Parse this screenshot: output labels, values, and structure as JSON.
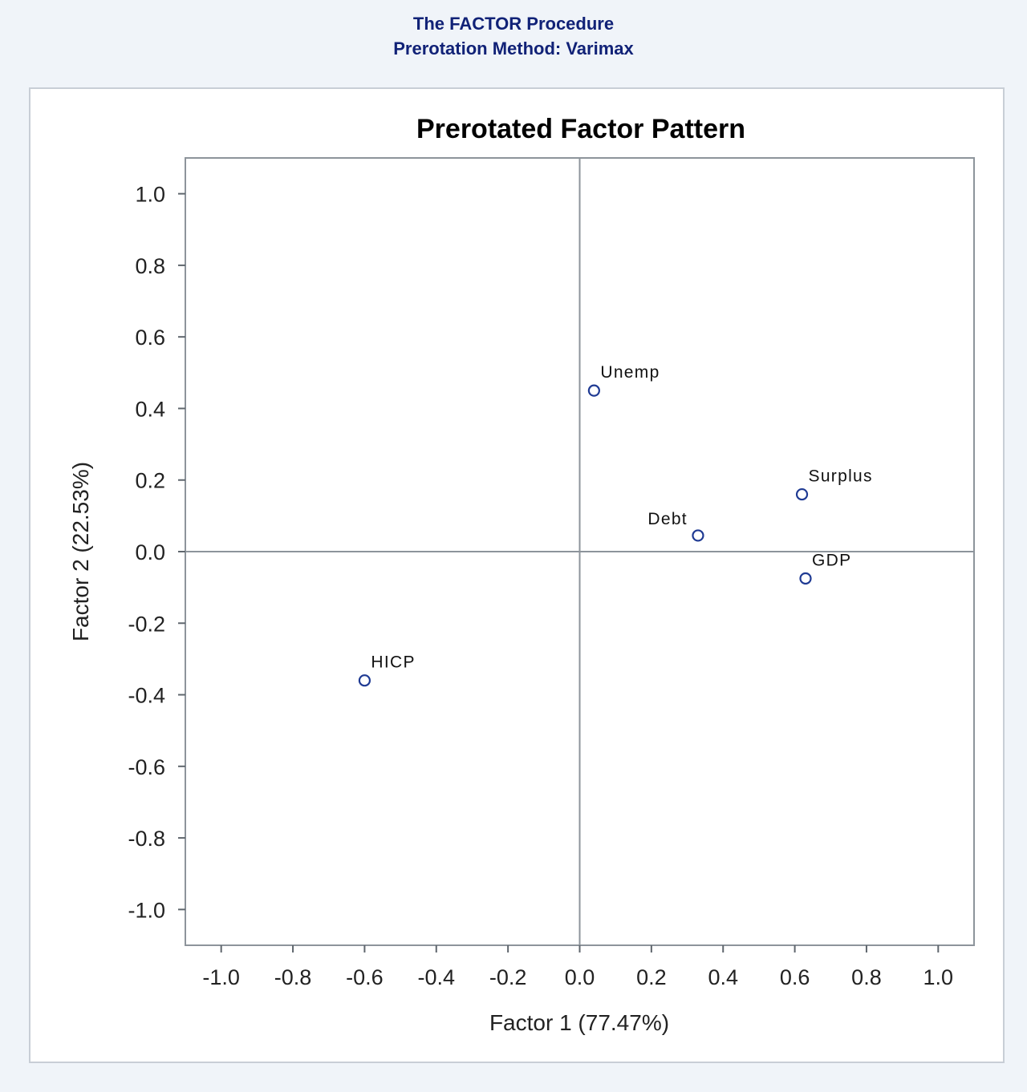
{
  "header": {
    "line1": "The FACTOR Procedure",
    "line2": "Prerotation Method: Varimax"
  },
  "chart_data": {
    "type": "scatter",
    "title": "Prerotated Factor Pattern",
    "xlabel": "Factor 1 (77.47%)",
    "ylabel": "Factor 2 (22.53%)",
    "xlim": [
      -1.1,
      1.1
    ],
    "ylim": [
      -1.1,
      1.1
    ],
    "xticks": [
      -1.0,
      -0.8,
      -0.6,
      -0.4,
      -0.2,
      0.0,
      0.2,
      0.4,
      0.6,
      0.8,
      1.0
    ],
    "yticks": [
      -1.0,
      -0.8,
      -0.6,
      -0.4,
      -0.2,
      0.0,
      0.2,
      0.4,
      0.6,
      0.8,
      1.0
    ],
    "reference_lines": {
      "x": 0,
      "y": 0
    },
    "grid": false,
    "marker": "open-circle",
    "marker_color": "#1f3a93",
    "points": [
      {
        "label": "Unemp",
        "x": 0.04,
        "y": 0.45
      },
      {
        "label": "Surplus",
        "x": 0.62,
        "y": 0.16
      },
      {
        "label": "Debt",
        "x": 0.33,
        "y": 0.045
      },
      {
        "label": "GDP",
        "x": 0.63,
        "y": -0.075
      },
      {
        "label": "HICP",
        "x": -0.6,
        "y": -0.36
      }
    ]
  }
}
